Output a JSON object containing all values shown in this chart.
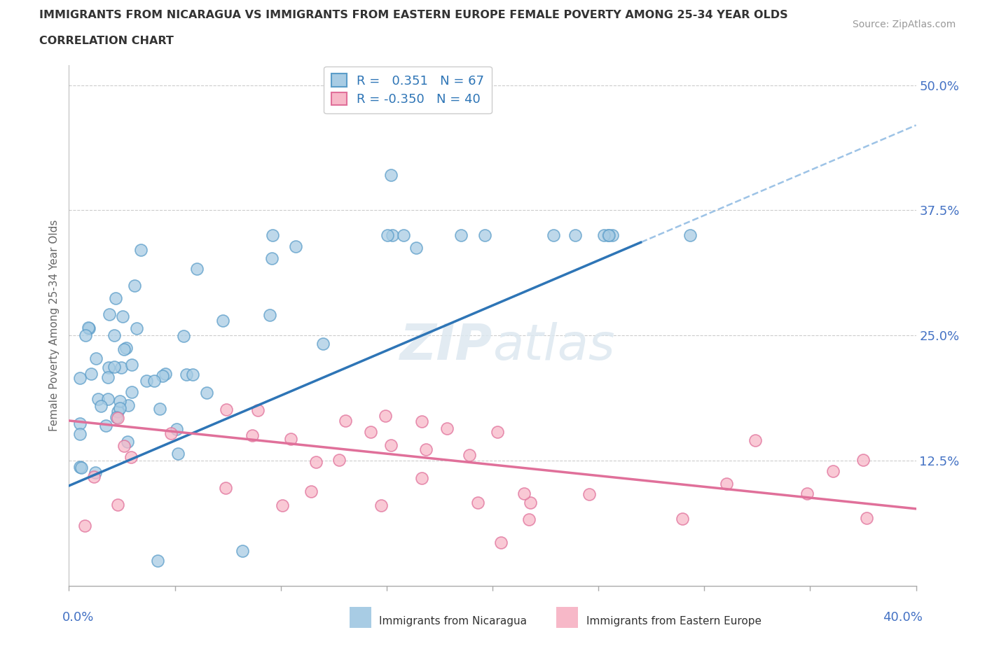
{
  "title_line1": "IMMIGRANTS FROM NICARAGUA VS IMMIGRANTS FROM EASTERN EUROPE FEMALE POVERTY AMONG 25-34 YEAR OLDS",
  "title_line2": "CORRELATION CHART",
  "source_text": "Source: ZipAtlas.com",
  "ylabel": "Female Poverty Among 25-34 Year Olds",
  "xlim": [
    0.0,
    0.4
  ],
  "ylim": [
    0.0,
    0.52
  ],
  "ytick_positions": [
    0.0,
    0.125,
    0.25,
    0.375,
    0.5
  ],
  "yticklabels": [
    "",
    "12.5%",
    "25.0%",
    "37.5%",
    "50.0%"
  ],
  "nicaragua_R": 0.351,
  "nicaragua_N": 67,
  "eastern_europe_R": -0.35,
  "eastern_europe_N": 40,
  "nic_color_fill": "#a8cce4",
  "nic_color_edge": "#5b9dc9",
  "ee_color_fill": "#f7b8c8",
  "ee_color_edge": "#e0709a",
  "nic_line_color": "#2e75b6",
  "nic_dash_color": "#9dc3e6",
  "ee_line_color": "#e0709a",
  "watermark_color": "#dde8f0",
  "grid_color": "#cccccc",
  "axis_color": "#aaaaaa",
  "title_color": "#333333",
  "ylabel_color": "#666666",
  "tick_label_color": "#4472c4",
  "source_color": "#999999"
}
